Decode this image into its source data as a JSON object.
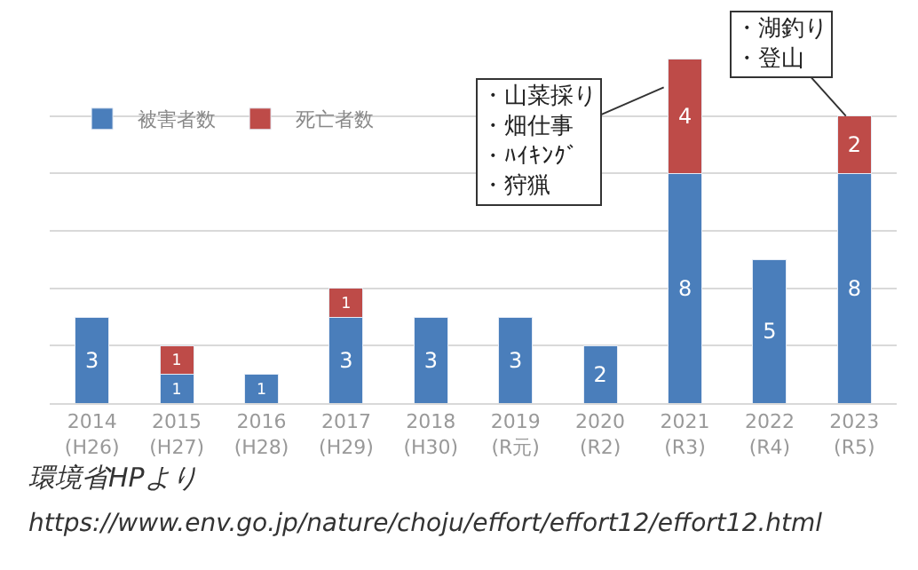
{
  "chart_data": {
    "type": "bar",
    "stacked": true,
    "categories": [
      "2014\n(H26)",
      "2015\n(H27)",
      "2016\n(H28)",
      "2017\n(H29)",
      "2018\n(H30)",
      "2019\n(R元)",
      "2020\n(R2)",
      "2021\n(R3)",
      "2022\n(R4)",
      "2023\n(R5)"
    ],
    "series": [
      {
        "name": "被害者数",
        "color": "#4a7ebb",
        "values": [
          3,
          1,
          1,
          3,
          3,
          3,
          2,
          8,
          5,
          8
        ],
        "value_labels": [
          "3",
          "1",
          "1",
          "3",
          "3",
          "3",
          "2",
          "8",
          "5",
          "8"
        ]
      },
      {
        "name": "死亡者数",
        "color": "#be4b48",
        "values": [
          null,
          1,
          null,
          1,
          null,
          null,
          null,
          4,
          null,
          2
        ],
        "value_labels": [
          null,
          "1",
          null,
          "1",
          null,
          null,
          null,
          "4",
          null,
          "2"
        ]
      }
    ],
    "ylim": [
      0,
      12
    ],
    "yticks": [
      {
        "value": 0,
        "label": null
      },
      {
        "value": 2,
        "label": null
      },
      {
        "value": 4,
        "label": null
      },
      {
        "value": 6,
        "label": null
      },
      {
        "value": 8,
        "label": null
      },
      {
        "value": 10,
        "label": null
      }
    ],
    "grid": "y",
    "tick_labels": "x",
    "legend": "top left",
    "annotations": [
      "・山菜採り・畑仕事・ﾊｲｷﾝｸﾞ・狩猟",
      "・湖釣り・登山",
      "環境省HPより",
      "https://www.env.go.jp/nature/choju/effort/effort12/effort12.html"
    ]
  }
}
